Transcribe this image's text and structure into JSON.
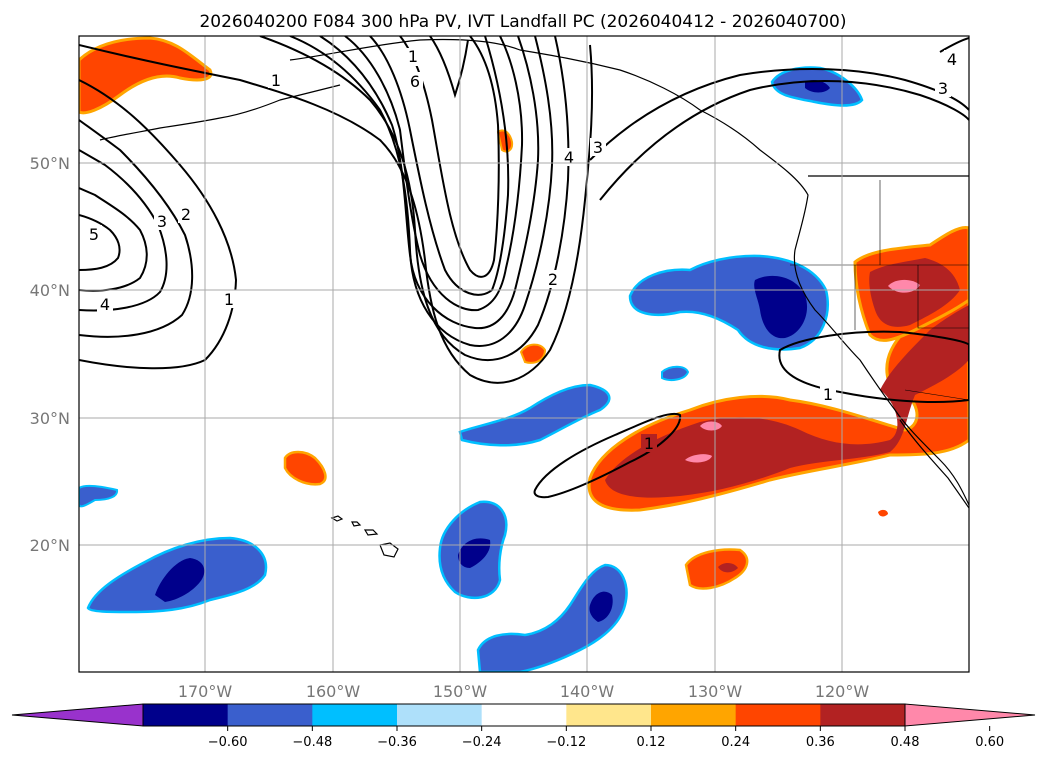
{
  "title": "2026040200 F084 300 hPa PV, IVT Landfall PC (2026040412 - 2026040700)",
  "map": {
    "lat_labels": [
      "50°N",
      "40°N",
      "30°N",
      "20°N"
    ],
    "lon_labels": [
      "170°W",
      "160°W",
      "150°W",
      "140°W",
      "130°W",
      "120°W"
    ],
    "grid": true
  },
  "contour_labels": [
    "1",
    "1",
    "2",
    "3",
    "4",
    "5",
    "6",
    "1",
    "2",
    "4",
    "3",
    "3",
    "4",
    "1",
    "1"
  ],
  "colorbar": {
    "ticks": [
      "−0.60",
      "−0.48",
      "−0.36",
      "−0.24",
      "−0.12",
      "0.12",
      "0.24",
      "0.36",
      "0.48",
      "0.60"
    ],
    "colors": [
      "#9932cc",
      "#00008b",
      "#3a5fcd",
      "#00bfff",
      "#aee0fa",
      "#ffffff",
      "#ffe68c",
      "#ffa500",
      "#ff4500",
      "#b22222",
      "#ff88aa"
    ],
    "extend": "both"
  },
  "colors": {
    "neg_strong": "#00008b",
    "neg_mid": "#3a5fcd",
    "neg_light": "#00bfff",
    "pos_light": "#ffa500",
    "pos_mid": "#ff4500",
    "pos_strong": "#b22222",
    "pos_max": "#ff88aa"
  }
}
